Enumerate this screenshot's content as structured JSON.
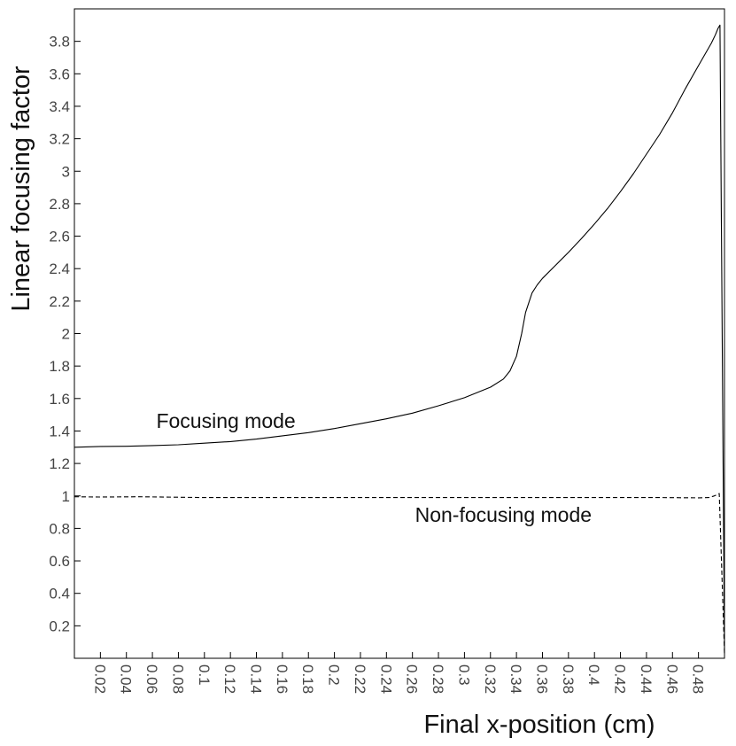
{
  "chart_data": {
    "type": "line",
    "title": "",
    "xlabel": "Final x-position (cm)",
    "ylabel": "Linear focusing factor",
    "xlim": [
      0,
      0.5
    ],
    "ylim": [
      0,
      4.0
    ],
    "grid": false,
    "legend": "none",
    "x_ticks": [
      0.02,
      0.04,
      0.06,
      0.08,
      0.1,
      0.12,
      0.14,
      0.16,
      0.18,
      0.2,
      0.22,
      0.24,
      0.26,
      0.28,
      0.3,
      0.32,
      0.34,
      0.36,
      0.38,
      0.4,
      0.42,
      0.44,
      0.46,
      0.48
    ],
    "x_tick_labels": [
      "0.02",
      "0.04",
      "0.06",
      "0.08",
      "0.1",
      "0.12",
      "0.14",
      "0.16",
      "0.18",
      "0.2",
      "0.22",
      "0.24",
      "0.26",
      "0.28",
      "0.3",
      "0.32",
      "0.34",
      "0.36",
      "0.38",
      "0.4",
      "0.42",
      "0.44",
      "0.46",
      "0.48"
    ],
    "y_ticks": [
      0.2,
      0.4,
      0.6,
      0.8,
      1,
      1.2,
      1.4,
      1.6,
      1.8,
      2,
      2.2,
      2.4,
      2.6,
      2.8,
      3,
      3.2,
      3.4,
      3.6,
      3.8
    ],
    "y_tick_labels": [
      "0.2",
      "0.4",
      "0.6",
      "0.8",
      "1",
      "1.2",
      "1.4",
      "1.6",
      "1.8",
      "2",
      "2.2",
      "2.4",
      "2.6",
      "2.8",
      "3",
      "3.2",
      "3.4",
      "3.6",
      "3.8"
    ],
    "series": [
      {
        "style": "solid",
        "color": "#000000",
        "x": [
          0.0,
          0.02,
          0.04,
          0.06,
          0.08,
          0.1,
          0.12,
          0.14,
          0.16,
          0.18,
          0.2,
          0.22,
          0.24,
          0.26,
          0.28,
          0.3,
          0.32,
          0.33,
          0.335,
          0.34,
          0.344,
          0.347,
          0.352,
          0.356,
          0.36,
          0.37,
          0.38,
          0.39,
          0.4,
          0.41,
          0.42,
          0.43,
          0.44,
          0.45,
          0.46,
          0.47,
          0.48,
          0.49,
          0.493,
          0.495,
          0.4965,
          0.5
        ],
        "y": [
          1.3,
          1.305,
          1.306,
          1.31,
          1.315,
          1.325,
          1.335,
          1.35,
          1.37,
          1.39,
          1.415,
          1.445,
          1.475,
          1.51,
          1.555,
          1.605,
          1.67,
          1.72,
          1.77,
          1.86,
          2.0,
          2.13,
          2.25,
          2.3,
          2.34,
          2.42,
          2.5,
          2.585,
          2.675,
          2.77,
          2.875,
          2.985,
          3.105,
          3.225,
          3.36,
          3.51,
          3.65,
          3.79,
          3.84,
          3.88,
          3.9,
          0.03
        ]
      },
      {
        "style": "dashed",
        "color": "#000000",
        "x": [
          0.0,
          0.02,
          0.05,
          0.1,
          0.15,
          0.2,
          0.25,
          0.3,
          0.35,
          0.4,
          0.45,
          0.48,
          0.488,
          0.492,
          0.495,
          0.496,
          0.5
        ],
        "y": [
          0.995,
          0.993,
          0.995,
          0.99,
          0.99,
          0.99,
          0.99,
          0.99,
          0.99,
          0.99,
          0.99,
          0.988,
          0.99,
          1.0,
          1.01,
          1.015,
          0.03
        ]
      }
    ],
    "annotations": [
      {
        "text": "Focusing mode",
        "x": 0.063,
        "y": 1.42
      },
      {
        "text": "Non-focusing mode",
        "x": 0.262,
        "y": 0.84
      }
    ]
  }
}
